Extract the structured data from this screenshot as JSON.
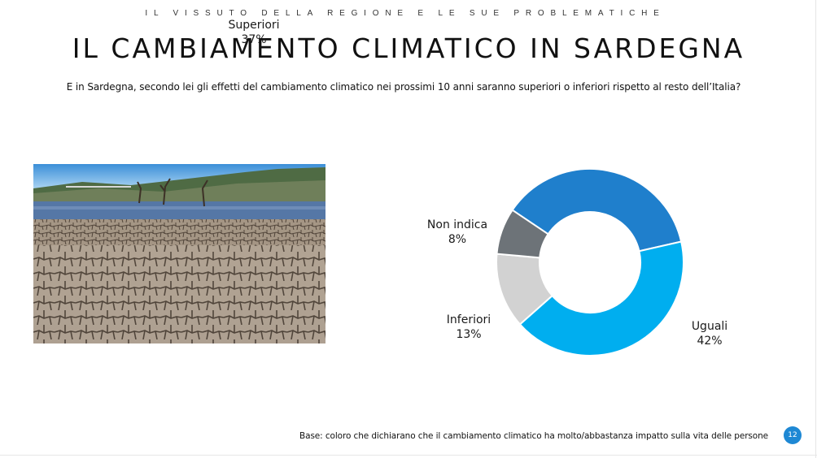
{
  "header": {
    "kicker": "IL VISSUTO DELLA REGIONE E LE SUE PROBLEMATICHE",
    "title": "IL CAMBIAMENTO CLIMATICO IN SARDEGNA",
    "question": "E in Sardegna, secondo lei gli effetti del cambiamento climatico nei prossimi 10 anni saranno superiori o inferiori rispetto al resto dell’Italia?"
  },
  "chart_data": {
    "type": "pie",
    "donut": true,
    "slices": [
      {
        "label": "Superiori",
        "value": 37,
        "display": "37%",
        "color": "#1f7fcc"
      },
      {
        "label": "Uguali",
        "value": 42,
        "display": "42%",
        "color": "#00aeef"
      },
      {
        "label": "Inferiori",
        "value": 13,
        "display": "13%",
        "color": "#d2d2d2"
      },
      {
        "label": "Non indica",
        "value": 8,
        "display": "8%",
        "color": "#6d7378"
      }
    ]
  },
  "footer": {
    "base_note": "Base: coloro che dichiarano che il cambiamento climatico ha molto/abbastanza impatto sulla vita delle persone",
    "page_number": "12"
  },
  "colors": {
    "accent": "#1e88d4"
  }
}
